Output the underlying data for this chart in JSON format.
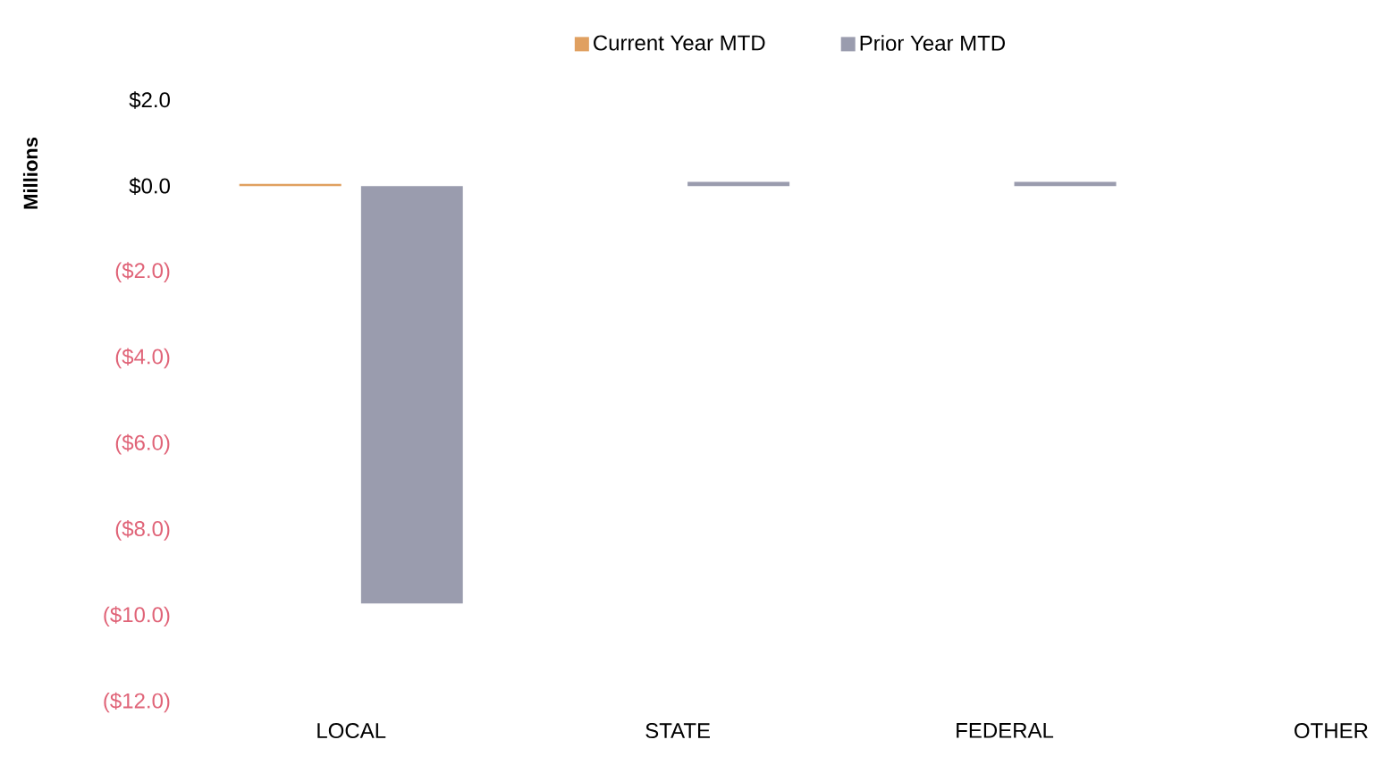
{
  "chart_data": {
    "type": "bar",
    "ylabel": "Millions",
    "categories": [
      "LOCAL",
      "STATE",
      "FEDERAL",
      "OTHER"
    ],
    "series": [
      {
        "name": "Current Year MTD",
        "color": "#e0a060",
        "values": [
          0.05,
          0,
          0,
          0
        ]
      },
      {
        "name": "Prior Year MTD",
        "color": "#9a9cae",
        "values": [
          -9.7,
          0.1,
          0.1,
          0
        ]
      }
    ],
    "ylim": [
      -12,
      2
    ],
    "yticks": [
      {
        "value": 2,
        "label": "$2.0"
      },
      {
        "value": 0,
        "label": "$0.0"
      },
      {
        "value": -2,
        "label": "($2.0)"
      },
      {
        "value": -4,
        "label": "($4.0)"
      },
      {
        "value": -6,
        "label": "($6.0)"
      },
      {
        "value": -8,
        "label": "($8.0)"
      },
      {
        "value": -10,
        "label": "($10.0)"
      },
      {
        "value": -12,
        "label": "($12.0)"
      }
    ],
    "legend": "top",
    "grid": false
  }
}
